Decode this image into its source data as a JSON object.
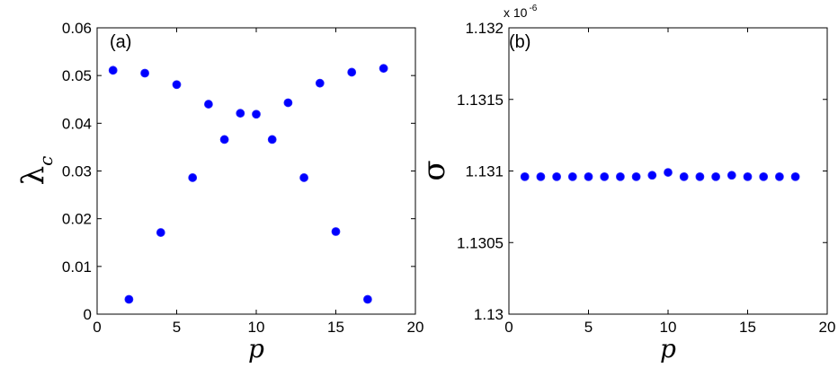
{
  "chart_data": [
    {
      "type": "scatter",
      "panel_label": "(a)",
      "xlabel": "p",
      "ylabel": "λ",
      "ylabel_subscript": "c",
      "xlim": [
        0,
        20
      ],
      "ylim": [
        0,
        0.06
      ],
      "x_ticks": [
        "0",
        "5",
        "10",
        "15",
        "20"
      ],
      "y_ticks": [
        "0",
        "0.01",
        "0.02",
        "0.03",
        "0.04",
        "0.05",
        "0.06"
      ],
      "marker_color": "#0000ff",
      "x": [
        1,
        2,
        3,
        4,
        5,
        6,
        7,
        8,
        9,
        10,
        11,
        12,
        13,
        14,
        15,
        16,
        17,
        18
      ],
      "y": [
        0.0511,
        0.0031,
        0.0505,
        0.0171,
        0.0481,
        0.0286,
        0.044,
        0.0366,
        0.0421,
        0.0419,
        0.0366,
        0.0443,
        0.0286,
        0.0484,
        0.0173,
        0.0507,
        0.0031,
        0.0515
      ]
    },
    {
      "type": "scatter",
      "panel_label": "(b)",
      "xlabel": "p",
      "ylabel": "σ",
      "y_multiplier": "x 10",
      "y_multiplier_exp": "-6",
      "xlim": [
        0,
        20
      ],
      "ylim": [
        1.13,
        1.132
      ],
      "x_ticks": [
        "0",
        "5",
        "10",
        "15",
        "20"
      ],
      "y_ticks": [
        "1.13",
        "1.1305",
        "1.131",
        "1.1315",
        "1.132"
      ],
      "marker_color": "#0000ff",
      "x": [
        1,
        2,
        3,
        4,
        5,
        6,
        7,
        8,
        9,
        10,
        11,
        12,
        13,
        14,
        15,
        16,
        17,
        18
      ],
      "y": [
        1.13096,
        1.13096,
        1.13096,
        1.13096,
        1.13096,
        1.13096,
        1.13096,
        1.13096,
        1.13097,
        1.13099,
        1.13096,
        1.13096,
        1.13096,
        1.13097,
        1.13096,
        1.13096,
        1.13096,
        1.13096
      ]
    }
  ]
}
